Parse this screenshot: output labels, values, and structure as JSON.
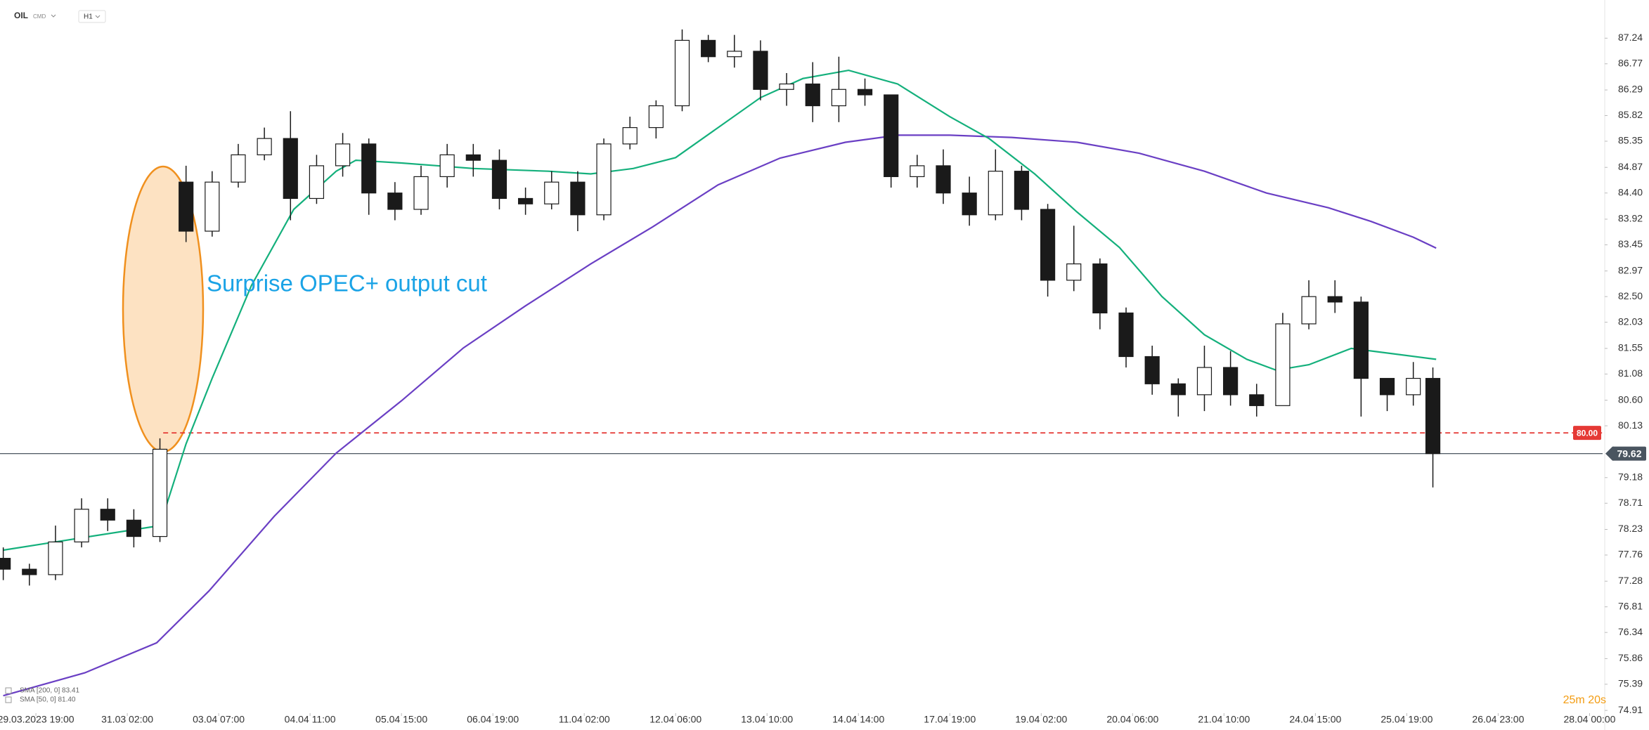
{
  "chart_data": {
    "type": "candlestick",
    "symbol": "OIL",
    "market": "CMD",
    "interval": "H1",
    "countdown": "25m 20s",
    "annotation": "Surprise OPEC+ output cut",
    "xlim": [
      -1,
      490
    ],
    "ylim": [
      74.86,
      87.94
    ],
    "xticks": [
      {
        "value": 10,
        "label": "29.03.2023 19:00"
      },
      {
        "value": 38,
        "label": "31.03 02:00"
      },
      {
        "value": 66,
        "label": "03.04 07:00"
      },
      {
        "value": 94,
        "label": "04.04 11:00"
      },
      {
        "value": 122,
        "label": "05.04 15:00"
      },
      {
        "value": 150,
        "label": "06.04 19:00"
      },
      {
        "value": 178,
        "label": "11.04 02:00"
      },
      {
        "value": 206,
        "label": "12.04 06:00"
      },
      {
        "value": 234,
        "label": "13.04 10:00"
      },
      {
        "value": 262,
        "label": "14.04 14:00"
      },
      {
        "value": 290,
        "label": "17.04 19:00"
      },
      {
        "value": 318,
        "label": "19.04 02:00"
      },
      {
        "value": 346,
        "label": "20.04 06:00"
      },
      {
        "value": 374,
        "label": "21.04 10:00"
      },
      {
        "value": 402,
        "label": "24.04 15:00"
      },
      {
        "value": 430,
        "label": "25.04 19:00"
      },
      {
        "value": 458,
        "label": "26.04 23:00"
      },
      {
        "value": 486,
        "label": "28.04 00:00"
      }
    ],
    "yticks": [
      87.24,
      86.77,
      86.29,
      85.82,
      85.35,
      84.87,
      {
        "value": 84.4,
        "label": "84.40"
      },
      83.92,
      83.45,
      82.97,
      {
        "value": 82.5,
        "label": "82.50"
      },
      82.03,
      81.55,
      81.08,
      {
        "value": 80.6,
        "label": "80.60"
      },
      80.13,
      79.18,
      78.71,
      78.23,
      77.76,
      77.28,
      76.81,
      76.34,
      75.86,
      75.39,
      74.91
    ],
    "up_color": "#ffffff",
    "down_color": "#1a1a1a",
    "wick_color": "#1a1a1a",
    "candles": {
      "x": [
        0,
        8,
        16,
        24,
        32,
        40,
        48,
        56,
        64,
        72,
        80,
        88,
        96,
        104,
        112,
        120,
        128,
        136,
        144,
        152,
        160,
        168,
        176,
        184,
        192,
        200,
        208,
        216,
        224,
        232,
        240,
        248,
        256,
        264,
        272,
        280,
        288,
        296,
        304,
        312,
        320,
        328,
        336,
        344,
        352,
        360,
        368,
        376,
        384,
        392,
        400,
        408,
        416,
        424,
        432,
        438
      ],
      "open": [
        77.7,
        77.5,
        77.4,
        78.0,
        78.6,
        78.4,
        78.1,
        84.6,
        83.7,
        84.6,
        85.1,
        85.4,
        84.3,
        84.9,
        85.3,
        84.4,
        84.1,
        84.7,
        85.1,
        85.0,
        84.3,
        84.2,
        84.6,
        84.0,
        85.3,
        85.6,
        86.0,
        87.2,
        86.9,
        87.0,
        86.3,
        86.4,
        86.0,
        86.3,
        86.2,
        84.7,
        84.9,
        84.4,
        84.0,
        84.8,
        84.1,
        82.8,
        83.1,
        82.2,
        81.4,
        80.9,
        80.7,
        81.2,
        80.7,
        80.5,
        82.0,
        82.5,
        82.4,
        81.0,
        80.7,
        81.0
      ],
      "high": [
        77.9,
        77.6,
        78.3,
        78.8,
        78.8,
        78.6,
        79.9,
        84.9,
        84.8,
        85.3,
        85.6,
        85.9,
        85.1,
        85.5,
        85.4,
        84.6,
        84.9,
        85.3,
        85.3,
        85.2,
        84.5,
        84.8,
        84.8,
        85.4,
        85.8,
        86.1,
        87.4,
        87.3,
        87.3,
        87.2,
        86.6,
        86.8,
        86.9,
        86.5,
        86.2,
        85.1,
        85.2,
        84.7,
        85.2,
        84.9,
        84.2,
        83.8,
        83.2,
        82.3,
        81.6,
        81.0,
        81.6,
        81.5,
        80.9,
        82.2,
        82.8,
        82.8,
        82.5,
        81.0,
        81.3,
        81.2
      ],
      "low": [
        77.3,
        77.2,
        77.3,
        77.9,
        78.2,
        77.9,
        78.0,
        83.5,
        83.6,
        84.5,
        85.0,
        83.9,
        84.2,
        84.7,
        84.0,
        83.9,
        84.0,
        84.5,
        84.7,
        84.1,
        84.0,
        84.1,
        83.7,
        83.9,
        85.2,
        85.4,
        85.9,
        86.8,
        86.7,
        86.1,
        86.0,
        85.7,
        85.7,
        86.0,
        84.5,
        84.5,
        84.2,
        83.8,
        83.9,
        83.9,
        82.5,
        82.6,
        81.9,
        81.2,
        80.7,
        80.3,
        80.4,
        80.5,
        80.3,
        80.5,
        81.9,
        82.2,
        80.3,
        80.4,
        80.5,
        79.0
      ],
      "close": [
        77.5,
        77.4,
        78.0,
        78.6,
        78.4,
        78.1,
        79.7,
        83.7,
        84.6,
        85.1,
        85.4,
        84.3,
        84.9,
        85.3,
        84.4,
        84.1,
        84.7,
        85.1,
        85.0,
        84.3,
        84.2,
        84.6,
        84.0,
        85.3,
        85.6,
        86.0,
        87.2,
        86.9,
        87.0,
        86.3,
        86.4,
        86.0,
        86.3,
        86.2,
        84.7,
        84.9,
        84.4,
        84.0,
        84.8,
        84.1,
        82.8,
        83.1,
        82.2,
        81.4,
        80.9,
        80.7,
        81.2,
        80.7,
        80.5,
        82.0,
        82.5,
        82.4,
        81.0,
        80.7,
        81.0,
        79.62
      ]
    },
    "series": [
      {
        "name": "SMA [200, 0] 83.41",
        "color": "#6a3fc4",
        "x": [
          0,
          25,
          47,
          63,
          83,
          102,
          122,
          141,
          160,
          180,
          199,
          219,
          238,
          258,
          274,
          290,
          309,
          329,
          348,
          368,
          387,
          406,
          419,
          432,
          439
        ],
        "values": [
          75.18,
          75.6,
          76.15,
          77.1,
          78.47,
          79.63,
          80.59,
          81.56,
          82.33,
          83.1,
          83.78,
          84.55,
          85.04,
          85.33,
          85.46,
          85.46,
          85.42,
          85.33,
          85.13,
          84.8,
          84.4,
          84.13,
          83.88,
          83.59,
          83.39
        ]
      },
      {
        "name": "SMA [50, 0] 81.40",
        "color": "#14b07c",
        "x": [
          0,
          16,
          48,
          56,
          64,
          76,
          89,
          102,
          108,
          122,
          144,
          167,
          180,
          193,
          206,
          219,
          232,
          245,
          259,
          274,
          290,
          302,
          316,
          329,
          342,
          355,
          368,
          381,
          390,
          400,
          413,
          426,
          439
        ],
        "values": [
          77.85,
          78.0,
          78.3,
          79.8,
          81.0,
          82.7,
          84.1,
          84.8,
          85.0,
          84.95,
          84.85,
          84.8,
          84.75,
          84.85,
          85.05,
          85.6,
          86.15,
          86.5,
          86.65,
          86.4,
          85.8,
          85.4,
          84.75,
          84.05,
          83.4,
          82.5,
          81.8,
          81.35,
          81.15,
          81.25,
          81.55,
          81.45,
          81.35
        ]
      }
    ],
    "levels": [
      {
        "value": 80,
        "label": "80.00",
        "color": "#e53935",
        "style": "dashed",
        "start_x": 49,
        "tag": "inside"
      },
      {
        "value": 79.62,
        "label": "79.62",
        "color": "#4a5560",
        "style": "solid",
        "start_x": -1,
        "tag": "axis"
      }
    ]
  }
}
